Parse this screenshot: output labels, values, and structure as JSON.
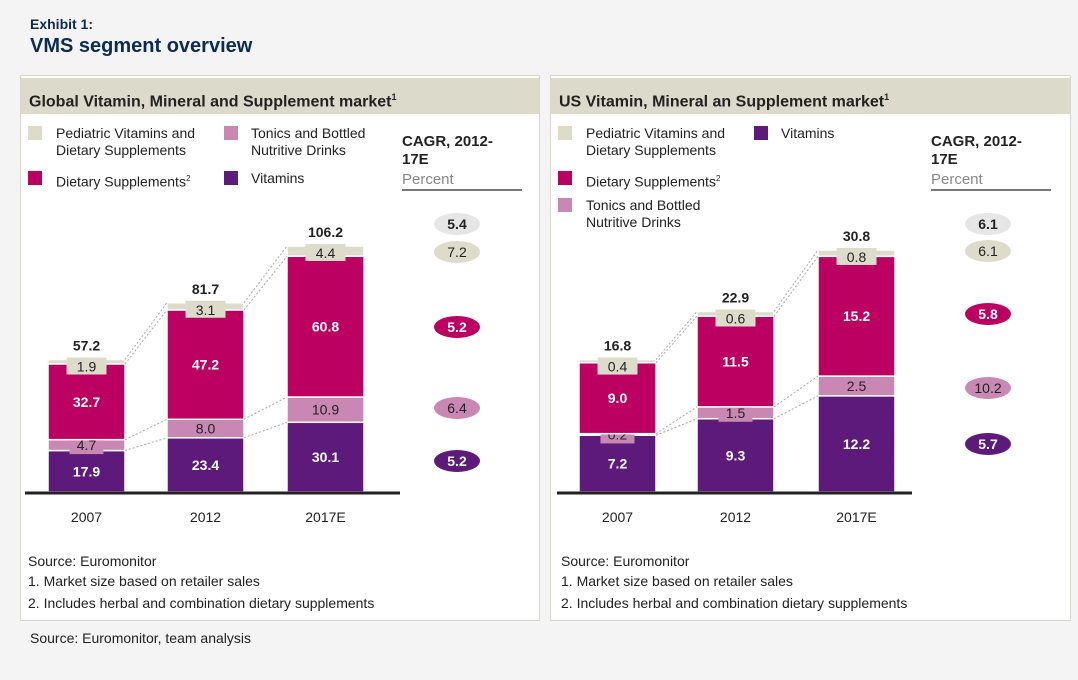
{
  "header": {
    "exhibit": "Exhibit 1:",
    "title": "VMS segment overview"
  },
  "colors": {
    "vitamins": "#5e1a7a",
    "tonics": "#c987b4",
    "dietary": "#bb0062",
    "pediatric": "#dddccb"
  },
  "chart_data": [
    {
      "type": "bar",
      "stacked": true,
      "title": "Global Vitamin, Mineral and Supplement market",
      "title_sup": "1",
      "categories": [
        "2007",
        "2012",
        "2017E"
      ],
      "series": [
        {
          "name": "Vitamins",
          "key": "vitamins",
          "values": [
            17.9,
            23.4,
            30.1
          ],
          "cagr": "5.2"
        },
        {
          "name": "Tonics and Bottled Nutritive Drinks",
          "key": "tonics",
          "values": [
            4.7,
            8.0,
            10.9
          ],
          "cagr": "6.4"
        },
        {
          "name": "Dietary Supplements",
          "name_sup": "2",
          "key": "dietary",
          "values": [
            32.7,
            47.2,
            60.8
          ],
          "cagr": "5.2"
        },
        {
          "name": "Pediatric Vitamins and Dietary Supplements",
          "key": "pediatric",
          "values": [
            1.9,
            3.1,
            4.4
          ],
          "cagr": "7.2"
        }
      ],
      "totals": [
        "57.2",
        "81.7",
        "106.2"
      ],
      "total_cagr": "5.4",
      "cagr_title": "CAGR, 2012-17E",
      "cagr_unit": "Percent",
      "legend": {
        "l1": "Pediatric Vitamins and",
        "l1b": "Dietary Supplements",
        "l2": "Tonics and Bottled",
        "l2b": "Nutritive Drinks",
        "l3": "Dietary Supplements",
        "l4": "Vitamins"
      },
      "notes": [
        "Source: Euromonitor",
        "1. Market size based on retailer sales",
        "2. Includes herbal and combination dietary supplements"
      ]
    },
    {
      "type": "bar",
      "stacked": true,
      "title": "US Vitamin, Mineral an Supplement market",
      "title_sup": "1",
      "categories": [
        "2007",
        "2012",
        "2017E"
      ],
      "series": [
        {
          "name": "Vitamins",
          "key": "vitamins",
          "values": [
            7.2,
            9.3,
            12.2
          ],
          "cagr": "5.7"
        },
        {
          "name": "Tonics and Bottled Nutritive Drinks",
          "key": "tonics",
          "values": [
            0.2,
            1.5,
            2.5
          ],
          "cagr": "10.2"
        },
        {
          "name": "Dietary Supplements",
          "name_sup": "2",
          "key": "dietary",
          "values": [
            9.0,
            11.5,
            15.2
          ],
          "cagr": "5.8"
        },
        {
          "name": "Pediatric Vitamins and Dietary Supplements",
          "key": "pediatric",
          "values": [
            0.4,
            0.6,
            0.8
          ],
          "cagr": "6.1"
        }
      ],
      "totals": [
        "16.8",
        "22.9",
        "30.8"
      ],
      "total_cagr": "6.1",
      "cagr_title": "CAGR, 2012-17E",
      "cagr_unit": "Percent",
      "legend": {
        "l1": "Pediatric Vitamins and",
        "l1b": "Dietary Supplements",
        "l2": "Tonics and Bottled",
        "l2b": "Nutritive Drinks",
        "l3": "Dietary Supplements",
        "l4": "Vitamins"
      },
      "notes": [
        "Source: Euromonitor",
        "1. Market size based on retailer sales",
        "2. Includes herbal and combination dietary supplements"
      ]
    }
  ],
  "source": "Source: Euromonitor, team analysis"
}
